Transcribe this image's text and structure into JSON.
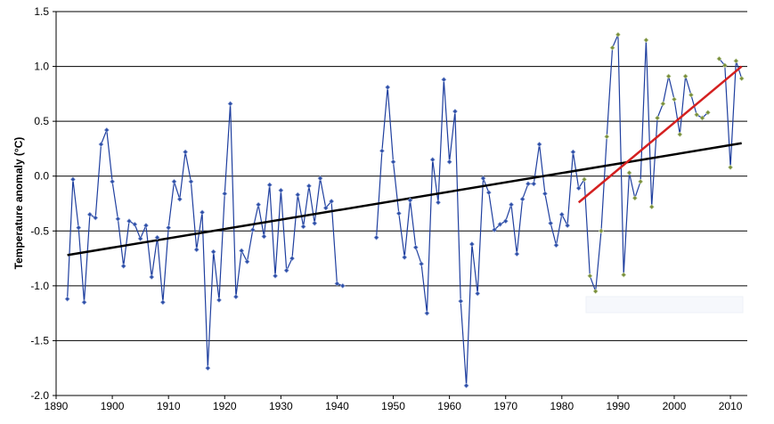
{
  "chart_data": {
    "type": "line",
    "title": "",
    "xlabel": "",
    "ylabel": "Temperature anomaly (°C)",
    "xlim": [
      1890,
      2013
    ],
    "ylim": [
      -2.0,
      1.5
    ],
    "x_ticks": [
      "1890",
      "1900",
      "1910",
      "1920",
      "1930",
      "1940",
      "1950",
      "1960",
      "1970",
      "1980",
      "1990",
      "2000",
      "2010"
    ],
    "y_ticks": [
      "1.5",
      "1.0",
      "0.5",
      "0.0",
      "-0.5",
      "-1.0",
      "-1.5",
      "-2.0"
    ],
    "grid": "horizontal",
    "colors": {
      "series": "#1f3f9f",
      "marker": "#2e4fa8",
      "marker_recent": "#7a8f3a",
      "trend_long": "#000000",
      "trend_recent": "#d42020"
    },
    "series": [
      {
        "style": "line-markers",
        "points": [
          [
            1892,
            -1.12
          ],
          [
            1893,
            -0.03
          ],
          [
            1894,
            -0.47
          ],
          [
            1895,
            -1.15
          ],
          [
            1896,
            -0.35
          ],
          [
            1897,
            -0.38
          ],
          [
            1898,
            0.29
          ],
          [
            1899,
            0.42
          ],
          [
            1900,
            -0.05
          ],
          [
            1901,
            -0.39
          ],
          [
            1902,
            -0.82
          ],
          [
            1903,
            -0.41
          ],
          [
            1904,
            -0.44
          ],
          [
            1905,
            -0.57
          ],
          [
            1906,
            -0.45
          ],
          [
            1907,
            -0.92
          ],
          [
            1908,
            -0.56
          ],
          [
            1909,
            -1.15
          ],
          [
            1910,
            -0.47
          ],
          [
            1911,
            -0.05
          ],
          [
            1912,
            -0.21
          ],
          [
            1913,
            0.22
          ],
          [
            1914,
            -0.05
          ],
          [
            1915,
            -0.67
          ],
          [
            1916,
            -0.33
          ],
          [
            1917,
            -1.75
          ],
          [
            1918,
            -0.69
          ],
          [
            1919,
            -1.13
          ],
          [
            1920,
            -0.16
          ],
          [
            1921,
            0.66
          ],
          [
            1922,
            -1.1
          ],
          [
            1923,
            -0.68
          ],
          [
            1924,
            -0.78
          ],
          [
            1925,
            -0.49
          ],
          [
            1926,
            -0.26
          ],
          [
            1927,
            -0.55
          ],
          [
            1928,
            -0.08
          ],
          [
            1929,
            -0.91
          ],
          [
            1930,
            -0.13
          ],
          [
            1931,
            -0.86
          ],
          [
            1932,
            -0.75
          ],
          [
            1933,
            -0.17
          ],
          [
            1934,
            -0.46
          ],
          [
            1935,
            -0.09
          ],
          [
            1936,
            -0.43
          ],
          [
            1937,
            -0.02
          ],
          [
            1938,
            -0.29
          ],
          [
            1939,
            -0.23
          ],
          [
            1940,
            -0.98
          ],
          [
            1941,
            -1.0
          ],
          null,
          [
            1947,
            -0.56
          ],
          [
            1948,
            0.23
          ],
          [
            1949,
            0.81
          ],
          [
            1950,
            0.13
          ],
          [
            1951,
            -0.34
          ],
          [
            1952,
            -0.74
          ],
          [
            1953,
            -0.22
          ],
          [
            1954,
            -0.65
          ],
          [
            1955,
            -0.8
          ],
          [
            1956,
            -1.25
          ],
          [
            1957,
            0.15
          ],
          [
            1958,
            -0.24
          ],
          [
            1959,
            0.88
          ],
          [
            1960,
            0.13
          ],
          [
            1961,
            0.59
          ],
          [
            1962,
            -1.14
          ],
          [
            1963,
            -1.91
          ],
          [
            1964,
            -0.62
          ],
          [
            1965,
            -1.07
          ],
          [
            1966,
            -0.02
          ],
          [
            1967,
            -0.15
          ],
          [
            1968,
            -0.49
          ],
          [
            1969,
            -0.44
          ],
          [
            1970,
            -0.41
          ],
          [
            1971,
            -0.26
          ],
          [
            1972,
            -0.71
          ],
          [
            1973,
            -0.21
          ],
          [
            1974,
            -0.07
          ],
          [
            1975,
            -0.07
          ],
          [
            1976,
            0.29
          ],
          [
            1977,
            -0.16
          ],
          [
            1978,
            -0.43
          ],
          [
            1979,
            -0.63
          ],
          [
            1980,
            -0.35
          ],
          [
            1981,
            -0.45
          ],
          [
            1982,
            0.22
          ],
          [
            1983,
            -0.11
          ],
          [
            1984,
            -0.03
          ],
          [
            1985,
            -0.91
          ],
          [
            1986,
            -1.05
          ],
          [
            1987,
            -0.5
          ],
          [
            1988,
            0.36
          ],
          [
            1989,
            1.17
          ],
          [
            1990,
            1.29
          ],
          [
            1991,
            -0.9
          ],
          [
            1992,
            0.03
          ],
          [
            1993,
            -0.2
          ],
          [
            1994,
            -0.05
          ],
          [
            1995,
            1.24
          ],
          [
            1996,
            -0.28
          ],
          [
            1997,
            0.53
          ],
          [
            1998,
            0.66
          ],
          [
            1999,
            0.91
          ],
          [
            2000,
            0.7
          ],
          [
            2001,
            0.38
          ],
          [
            2002,
            0.91
          ],
          [
            2003,
            0.74
          ],
          [
            2004,
            0.56
          ],
          [
            2005,
            0.53
          ],
          [
            2006,
            0.58
          ],
          null,
          [
            2008,
            1.07
          ],
          [
            2009,
            1.01
          ],
          [
            2010,
            0.08
          ],
          [
            2011,
            1.05
          ],
          [
            2012,
            0.89
          ]
        ],
        "recent_from": 1984
      }
    ],
    "trend_lines": [
      {
        "x": [
          1892,
          2012
        ],
        "y": [
          -0.72,
          0.3
        ]
      },
      {
        "x": [
          1983,
          2012
        ],
        "y": [
          -0.24,
          1.0
        ]
      }
    ],
    "legend_box": {
      "text": ""
    }
  }
}
